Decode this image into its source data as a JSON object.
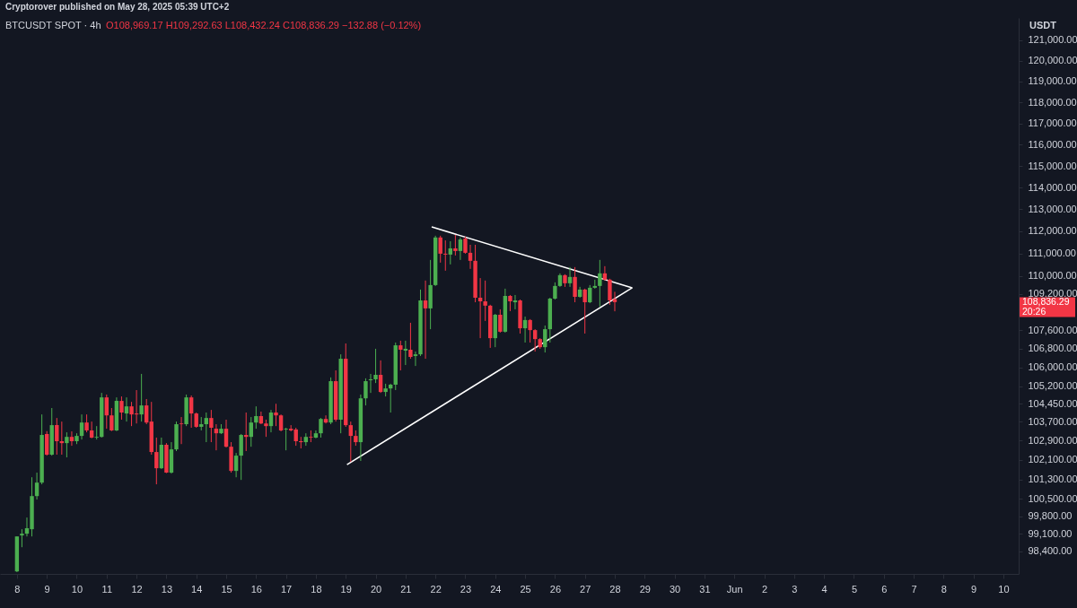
{
  "chart_data": {
    "type": "candlestick",
    "title": "BTCUSDT SPOT · 4h",
    "subtitle": "O108,969.17 H109,292.63 L108,432.24 C108,836.29 −132.88 (−0.12%)",
    "ylabel": "USDT",
    "annotations": [
      "Cryptorover published on May 28, 2025 05:39 UTC+2",
      "108,836.29",
      "20:26"
    ],
    "x": [
      "2025-05-08T00:00",
      "2025-05-08T04:00",
      "2025-05-08T08:00",
      "2025-05-08T12:00",
      "2025-05-08T16:00",
      "2025-05-08T20:00",
      "2025-05-09T00:00",
      "2025-05-09T04:00",
      "2025-05-09T08:00",
      "2025-05-09T12:00",
      "2025-05-09T16:00",
      "2025-05-09T20:00",
      "2025-05-10T00:00",
      "2025-05-10T04:00",
      "2025-05-10T08:00",
      "2025-05-10T12:00",
      "2025-05-10T16:00",
      "2025-05-10T20:00",
      "2025-05-11T00:00",
      "2025-05-11T04:00",
      "2025-05-11T08:00",
      "2025-05-11T12:00",
      "2025-05-11T16:00",
      "2025-05-11T20:00",
      "2025-05-12T00:00",
      "2025-05-12T04:00",
      "2025-05-12T08:00",
      "2025-05-12T12:00",
      "2025-05-12T16:00",
      "2025-05-12T20:00",
      "2025-05-13T00:00",
      "2025-05-13T04:00",
      "2025-05-13T08:00",
      "2025-05-13T12:00",
      "2025-05-13T16:00",
      "2025-05-13T20:00",
      "2025-05-14T00:00",
      "2025-05-14T04:00",
      "2025-05-14T08:00",
      "2025-05-14T12:00",
      "2025-05-14T16:00",
      "2025-05-14T20:00",
      "2025-05-15T00:00",
      "2025-05-15T04:00",
      "2025-05-15T08:00",
      "2025-05-15T12:00",
      "2025-05-15T16:00",
      "2025-05-15T20:00",
      "2025-05-16T00:00",
      "2025-05-16T04:00",
      "2025-05-16T08:00",
      "2025-05-16T12:00",
      "2025-05-16T16:00",
      "2025-05-16T20:00",
      "2025-05-17T00:00",
      "2025-05-17T04:00",
      "2025-05-17T08:00",
      "2025-05-17T12:00",
      "2025-05-17T16:00",
      "2025-05-17T20:00",
      "2025-05-18T00:00",
      "2025-05-18T04:00",
      "2025-05-18T08:00",
      "2025-05-18T12:00",
      "2025-05-18T16:00",
      "2025-05-18T20:00",
      "2025-05-19T00:00",
      "2025-05-19T04:00",
      "2025-05-19T08:00",
      "2025-05-19T12:00",
      "2025-05-19T16:00",
      "2025-05-19T20:00",
      "2025-05-20T00:00",
      "2025-05-20T04:00",
      "2025-05-20T08:00",
      "2025-05-20T12:00",
      "2025-05-20T16:00",
      "2025-05-20T20:00",
      "2025-05-21T00:00",
      "2025-05-21T04:00",
      "2025-05-21T08:00",
      "2025-05-21T12:00",
      "2025-05-21T16:00",
      "2025-05-21T20:00",
      "2025-05-22T00:00",
      "2025-05-22T04:00",
      "2025-05-22T08:00",
      "2025-05-22T12:00",
      "2025-05-22T16:00",
      "2025-05-22T20:00",
      "2025-05-23T00:00",
      "2025-05-23T04:00",
      "2025-05-23T08:00",
      "2025-05-23T12:00",
      "2025-05-23T16:00",
      "2025-05-23T20:00",
      "2025-05-24T00:00",
      "2025-05-24T04:00",
      "2025-05-24T08:00",
      "2025-05-24T12:00",
      "2025-05-24T16:00",
      "2025-05-24T20:00",
      "2025-05-25T00:00",
      "2025-05-25T04:00",
      "2025-05-25T08:00",
      "2025-05-25T12:00",
      "2025-05-25T16:00",
      "2025-05-25T20:00",
      "2025-05-26T00:00",
      "2025-05-26T04:00",
      "2025-05-26T08:00",
      "2025-05-26T12:00",
      "2025-05-26T16:00",
      "2025-05-26T20:00",
      "2025-05-27T00:00",
      "2025-05-27T04:00",
      "2025-05-27T08:00",
      "2025-05-27T12:00",
      "2025-05-27T16:00",
      "2025-05-27T20:00",
      "2025-05-28T00:00"
    ],
    "ohlc": [
      [
        97600,
        98990,
        97570,
        98990
      ],
      [
        99030,
        99280,
        98560,
        99100
      ],
      [
        99100,
        99750,
        98990,
        99320
      ],
      [
        99280,
        101390,
        98990,
        100620
      ],
      [
        100620,
        101580,
        100480,
        101170
      ],
      [
        101170,
        104000,
        101100,
        103140
      ],
      [
        103180,
        103300,
        102280,
        102320
      ],
      [
        102320,
        104270,
        102280,
        103550
      ],
      [
        103550,
        103850,
        102320,
        102880
      ],
      [
        102880,
        103700,
        102320,
        102800
      ],
      [
        102800,
        103250,
        102210,
        103060
      ],
      [
        103060,
        103290,
        102690,
        102880
      ],
      [
        102880,
        103210,
        102760,
        103100
      ],
      [
        103100,
        104000,
        102950,
        103660
      ],
      [
        103660,
        104000,
        103250,
        103330
      ],
      [
        103330,
        103700,
        103000,
        103030
      ],
      [
        103030,
        103510,
        102950,
        103060
      ],
      [
        103060,
        104910,
        103030,
        104720
      ],
      [
        104720,
        104840,
        103400,
        103960
      ],
      [
        103960,
        104270,
        103300,
        103330
      ],
      [
        103330,
        104720,
        103300,
        104570
      ],
      [
        104570,
        104760,
        103780,
        104080
      ],
      [
        104040,
        104720,
        103700,
        104340
      ],
      [
        104340,
        104530,
        103510,
        104000
      ],
      [
        104040,
        105030,
        103620,
        104000
      ],
      [
        104000,
        105720,
        103700,
        104380
      ],
      [
        104380,
        104650,
        103590,
        103660
      ],
      [
        103700,
        104530,
        102320,
        102430
      ],
      [
        102430,
        103030,
        101100,
        101760
      ],
      [
        101760,
        103030,
        101730,
        102730
      ],
      [
        102730,
        102800,
        101560,
        101580
      ],
      [
        101580,
        102840,
        101540,
        102540
      ],
      [
        102540,
        103700,
        102470,
        103590
      ],
      [
        103620,
        103890,
        102760,
        103590
      ],
      [
        103590,
        104840,
        103510,
        104720
      ],
      [
        104720,
        104800,
        103440,
        104040
      ],
      [
        104040,
        104080,
        103440,
        103480
      ],
      [
        103480,
        103890,
        103330,
        103590
      ],
      [
        103590,
        104080,
        102840,
        103850
      ],
      [
        103850,
        104190,
        102840,
        103440
      ],
      [
        103400,
        103590,
        102500,
        103210
      ],
      [
        103210,
        103590,
        103180,
        103400
      ],
      [
        103400,
        103780,
        102620,
        102650
      ],
      [
        102650,
        102840,
        101580,
        101650
      ],
      [
        101650,
        102390,
        101390,
        102280
      ],
      [
        102280,
        103180,
        101280,
        103140
      ],
      [
        103140,
        104080,
        102470,
        103060
      ],
      [
        103060,
        103890,
        102650,
        103660
      ],
      [
        103660,
        104340,
        103400,
        103930
      ],
      [
        103930,
        104120,
        103590,
        103620
      ],
      [
        103620,
        103780,
        103060,
        103510
      ],
      [
        103510,
        104190,
        103250,
        104080
      ],
      [
        104080,
        104450,
        103510,
        103960
      ],
      [
        103960,
        104000,
        103290,
        103330
      ],
      [
        103370,
        103440,
        102500,
        103400
      ],
      [
        103400,
        103550,
        103290,
        103330
      ],
      [
        103370,
        103440,
        102690,
        102880
      ],
      [
        102880,
        103060,
        102580,
        102840
      ],
      [
        102840,
        103210,
        102690,
        103060
      ],
      [
        103060,
        103330,
        102840,
        103030
      ],
      [
        103030,
        103330,
        103000,
        103210
      ],
      [
        103210,
        103850,
        103030,
        103810
      ],
      [
        103810,
        103960,
        103620,
        103660
      ],
      [
        103660,
        105570,
        103590,
        105410
      ],
      [
        105410,
        105870,
        103700,
        103780
      ],
      [
        103780,
        106560,
        103210,
        106370
      ],
      [
        106370,
        107030,
        103480,
        103550
      ],
      [
        103550,
        103700,
        102020,
        103100
      ],
      [
        103100,
        103330,
        102690,
        102840
      ],
      [
        102840,
        104840,
        102060,
        104680
      ],
      [
        104680,
        105530,
        104380,
        105410
      ],
      [
        105450,
        105720,
        104910,
        105490
      ],
      [
        105490,
        106800,
        105330,
        105680
      ],
      [
        105680,
        106300,
        104910,
        104950
      ],
      [
        104950,
        105300,
        104760,
        105100
      ],
      [
        105100,
        105300,
        104080,
        105260
      ],
      [
        105260,
        107070,
        105030,
        106950
      ],
      [
        106950,
        107150,
        105870,
        106760
      ],
      [
        106720,
        107150,
        106100,
        106800
      ],
      [
        106760,
        107930,
        106370,
        106450
      ],
      [
        106490,
        106680,
        106060,
        106560
      ],
      [
        106560,
        109390,
        106490,
        108910
      ],
      [
        108910,
        109790,
        106370,
        108560
      ],
      [
        108560,
        110710,
        107650,
        109590
      ],
      [
        109590,
        111800,
        109550,
        111720
      ],
      [
        111720,
        111800,
        110590,
        110990
      ],
      [
        110990,
        111590,
        110230,
        110950
      ],
      [
        110950,
        111550,
        110510,
        111230
      ],
      [
        111230,
        111840,
        110910,
        111110
      ],
      [
        111110,
        111720,
        110710,
        111630
      ],
      [
        111670,
        111760,
        110990,
        111030
      ],
      [
        111030,
        111390,
        110310,
        110670
      ],
      [
        110670,
        111390,
        108830,
        109030
      ],
      [
        109030,
        109900,
        107260,
        108870
      ],
      [
        108870,
        109790,
        108010,
        108680
      ],
      [
        108680,
        108720,
        106840,
        107260
      ],
      [
        107260,
        108320,
        106870,
        108280
      ],
      [
        108280,
        108520,
        107500,
        107540
      ],
      [
        107540,
        109430,
        107500,
        109110
      ],
      [
        109110,
        109150,
        108440,
        108870
      ],
      [
        108830,
        109150,
        108520,
        108910
      ],
      [
        108910,
        108950,
        107460,
        107690
      ],
      [
        107690,
        108200,
        107070,
        108050
      ],
      [
        108050,
        108090,
        107070,
        107610
      ],
      [
        107610,
        107650,
        106680,
        107220
      ],
      [
        107220,
        107260,
        106800,
        106870
      ],
      [
        106870,
        107810,
        106640,
        107650
      ],
      [
        107650,
        109030,
        107070,
        108990
      ],
      [
        108990,
        109710,
        108950,
        109550
      ],
      [
        109550,
        110110,
        109510,
        110030
      ],
      [
        110030,
        110070,
        109510,
        109670
      ],
      [
        109670,
        110390,
        109510,
        109950
      ],
      [
        109950,
        110390,
        108830,
        109070
      ],
      [
        109070,
        109510,
        109030,
        109390
      ],
      [
        109390,
        109430,
        107460,
        108830
      ],
      [
        108830,
        109590,
        108790,
        109470
      ],
      [
        109470,
        109830,
        109430,
        109550
      ],
      [
        109550,
        110710,
        108640,
        110110
      ],
      [
        110110,
        110430,
        109790,
        109830
      ],
      [
        109830,
        109870,
        108720,
        108910
      ],
      [
        108969.17,
        109292.63,
        108432.24,
        108836.29
      ]
    ],
    "series": [
      {
        "type": "line",
        "color": "#ffffff",
        "x": [
          "2025-05-21T21:00",
          "2025-05-28T14:00"
        ],
        "values": [
          112200,
          109470
        ]
      },
      {
        "type": "line",
        "color": "#ffffff",
        "x": [
          "2025-05-19T01:00",
          "2025-05-28T14:00"
        ],
        "values": [
          101910,
          109470
        ]
      }
    ],
    "log": "y",
    "xlim": [
      "2025-05-07T14:00",
      "2025-06-10T08:40"
    ],
    "xticks": [
      {
        "value": "2025-05-08",
        "label": "8"
      },
      {
        "value": "2025-05-09",
        "label": "9"
      },
      {
        "value": "2025-05-10",
        "label": "10"
      },
      {
        "value": "2025-05-11",
        "label": "11"
      },
      {
        "value": "2025-05-12",
        "label": "12"
      },
      {
        "value": "2025-05-13",
        "label": "13"
      },
      {
        "value": "2025-05-14",
        "label": "14"
      },
      {
        "value": "2025-05-15",
        "label": "15"
      },
      {
        "value": "2025-05-16",
        "label": "16"
      },
      {
        "value": "2025-05-17",
        "label": "17"
      },
      {
        "value": "2025-05-18",
        "label": "18"
      },
      {
        "value": "2025-05-19",
        "label": "19"
      },
      {
        "value": "2025-05-20",
        "label": "20"
      },
      {
        "value": "2025-05-21",
        "label": "21"
      },
      {
        "value": "2025-05-22",
        "label": "22"
      },
      {
        "value": "2025-05-23",
        "label": "23"
      },
      {
        "value": "2025-05-24",
        "label": "24"
      },
      {
        "value": "2025-05-25",
        "label": "25"
      },
      {
        "value": "2025-05-26",
        "label": "26"
      },
      {
        "value": "2025-05-27",
        "label": "27"
      },
      {
        "value": "2025-05-28",
        "label": "28"
      },
      {
        "value": "2025-05-29",
        "label": "29"
      },
      {
        "value": "2025-05-30",
        "label": "30"
      },
      {
        "value": "2025-05-31",
        "label": "31"
      },
      {
        "value": "2025-06-01",
        "label": "Jun"
      },
      {
        "value": "2025-06-02",
        "label": "2"
      },
      {
        "value": "2025-06-03",
        "label": "3"
      },
      {
        "value": "2025-06-04",
        "label": "4"
      },
      {
        "value": "2025-06-05",
        "label": "5"
      },
      {
        "value": "2025-06-06",
        "label": "6"
      },
      {
        "value": "2025-06-07",
        "label": "7"
      },
      {
        "value": "2025-06-08",
        "label": "8"
      },
      {
        "value": "2025-06-09",
        "label": "9"
      },
      {
        "value": "2025-06-10",
        "label": "10"
      }
    ],
    "ylim": [
      97500,
      122100
    ],
    "yticks": [
      {
        "value": 121000,
        "label": "121,000.00"
      },
      {
        "value": 120000,
        "label": "120,000.00"
      },
      {
        "value": 119000,
        "label": "119,000.00"
      },
      {
        "value": 118000,
        "label": "118,000.00"
      },
      {
        "value": 117000,
        "label": "117,000.00"
      },
      {
        "value": 116000,
        "label": "116,000.00"
      },
      {
        "value": 115000,
        "label": "115,000.00"
      },
      {
        "value": 114000,
        "label": "114,000.00"
      },
      {
        "value": 113000,
        "label": "113,000.00"
      },
      {
        "value": 112000,
        "label": "112,000.00"
      },
      {
        "value": 111000,
        "label": "111,000.00"
      },
      {
        "value": 110000,
        "label": "110,000.00"
      },
      {
        "value": 109200,
        "label": "109,200.00"
      },
      {
        "value": 107600,
        "label": "107,600.00"
      },
      {
        "value": 106800,
        "label": "106,800.00"
      },
      {
        "value": 106000,
        "label": "106,000.00"
      },
      {
        "value": 105200,
        "label": "105,200.00"
      },
      {
        "value": 104450,
        "label": "104,450.00"
      },
      {
        "value": 103700,
        "label": "103,700.00"
      },
      {
        "value": 102900,
        "label": "102,900.00"
      },
      {
        "value": 102100,
        "label": "102,100.00"
      },
      {
        "value": 101300,
        "label": "101,300.00"
      },
      {
        "value": 100500,
        "label": "100,500.00"
      },
      {
        "value": 99800,
        "label": "99,800.00"
      },
      {
        "value": 99100,
        "label": "99,100.00"
      },
      {
        "value": 98400,
        "label": "98,400.00"
      }
    ]
  }
}
